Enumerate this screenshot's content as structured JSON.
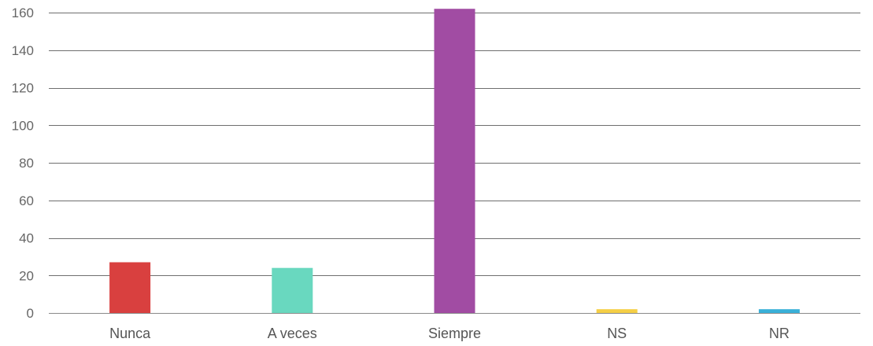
{
  "chart_data": {
    "type": "bar",
    "categories": [
      "Nunca",
      "A veces",
      "Siempre",
      "NS",
      "NR"
    ],
    "values": [
      27,
      24,
      162,
      2,
      2
    ],
    "colors": [
      "#d9403f",
      "#69d8bf",
      "#a14ca3",
      "#f5cf45",
      "#39b0d8"
    ],
    "ylim": [
      0,
      160
    ],
    "yticks": [
      0,
      20,
      40,
      60,
      80,
      100,
      120,
      140,
      160
    ],
    "grid": true,
    "legend": "none",
    "title": "",
    "xlabel": "",
    "ylabel": ""
  }
}
